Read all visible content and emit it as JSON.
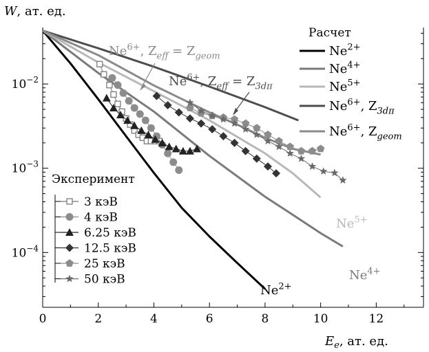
{
  "chart_data": {
    "type": "line",
    "title": "",
    "xlabel": "E_e, ат. ед.",
    "ylabel": "W, ат. ед.",
    "xlim": [
      0,
      13.7
    ],
    "ylim_log10": [
      -4.65,
      -1.33
    ],
    "yscale": "log",
    "x_ticks": [
      0,
      2,
      4,
      6,
      8,
      10,
      12
    ],
    "y_ticks": [
      {
        "value": 0.01,
        "label": "10^-2"
      },
      {
        "value": 0.001,
        "label": "10^-3"
      },
      {
        "value": 0.0001,
        "label": "10^-4"
      }
    ],
    "grid": false,
    "legend_calc_title": "Расчет",
    "legend_exp_title": "Эксперимент",
    "legend_calc_placement": "top-right",
    "legend_exp_placement": "bottom-left",
    "calc_series": [
      {
        "key": "ne2",
        "name": "Ne^2+",
        "color": "#000000",
        "points": [
          [
            0,
            0.043
          ],
          [
            1,
            0.0175
          ],
          [
            2,
            0.0066
          ],
          [
            3,
            0.0024
          ],
          [
            4,
            0.00088
          ],
          [
            5,
            0.00034
          ],
          [
            6,
            0.000155
          ],
          [
            7,
            7.5e-05
          ],
          [
            8,
            3.7e-05
          ]
        ]
      },
      {
        "key": "ne4",
        "name": "Ne^4+",
        "color": "#7a7a7a",
        "points": [
          [
            0,
            0.043
          ],
          [
            2,
            0.0135
          ],
          [
            4,
            0.0047
          ],
          [
            6,
            0.0014
          ],
          [
            8,
            0.00046
          ],
          [
            9,
            0.00028
          ],
          [
            10,
            0.00017
          ],
          [
            10.8,
            0.000118
          ]
        ]
      },
      {
        "key": "ne5",
        "name": "Ne^5+",
        "color": "#b8b8b8",
        "points": [
          [
            0,
            0.043
          ],
          [
            2,
            0.018
          ],
          [
            4,
            0.0082
          ],
          [
            6,
            0.0037
          ],
          [
            8,
            0.0015
          ],
          [
            9,
            0.00087
          ],
          [
            10,
            0.00045
          ]
        ]
      },
      {
        "key": "ne6_3dpi",
        "name": "Ne^6+, Z_3dπ",
        "color": "#4c4c4c",
        "points": [
          [
            0,
            0.043
          ],
          [
            2,
            0.0265
          ],
          [
            4,
            0.016
          ],
          [
            6,
            0.0093
          ],
          [
            8,
            0.0053
          ],
          [
            9.2,
            0.0037
          ]
        ]
      },
      {
        "key": "ne6_geom",
        "name": "Ne^6+, Z_geom",
        "color": "#8a8a8a",
        "points": [
          [
            0,
            0.043
          ],
          [
            2,
            0.022
          ],
          [
            4,
            0.0096
          ],
          [
            6,
            0.0046
          ],
          [
            7,
            0.0033
          ],
          [
            8,
            0.0023
          ],
          [
            9,
            0.0017
          ],
          [
            10,
            0.00145
          ]
        ]
      }
    ],
    "exp_series": [
      {
        "key": "e3",
        "name": "3 кэВ",
        "marker": "open-square",
        "color": "#7a7a7a",
        "points": [
          [
            2.05,
            0.0172
          ],
          [
            2.2,
            0.013
          ],
          [
            2.4,
            0.0097
          ],
          [
            2.55,
            0.0075
          ],
          [
            2.7,
            0.0058
          ],
          [
            2.85,
            0.0047
          ],
          [
            3.0,
            0.0039
          ],
          [
            3.15,
            0.0033
          ],
          [
            3.3,
            0.0028
          ],
          [
            3.45,
            0.0025
          ],
          [
            3.6,
            0.0023
          ],
          [
            3.75,
            0.0021
          ],
          [
            3.9,
            0.0021
          ],
          [
            4.05,
            0.0021
          ],
          [
            4.2,
            0.0021
          ]
        ]
      },
      {
        "key": "e4",
        "name": "4 кэВ",
        "marker": "circle",
        "color": "#8c8c8c",
        "points": [
          [
            2.5,
            0.0118
          ],
          [
            2.7,
            0.0097
          ],
          [
            2.9,
            0.0078
          ],
          [
            3.1,
            0.0063
          ],
          [
            3.3,
            0.0052
          ],
          [
            3.5,
            0.0044
          ],
          [
            3.7,
            0.0037
          ],
          [
            3.9,
            0.003
          ],
          [
            4.1,
            0.0024
          ],
          [
            4.3,
            0.0019
          ],
          [
            4.5,
            0.0015
          ],
          [
            4.7,
            0.00118
          ],
          [
            4.9,
            0.00095
          ]
        ]
      },
      {
        "key": "e625",
        "name": "6.25 кэВ",
        "marker": "triangle",
        "color": "#222222",
        "points": [
          [
            2.3,
            0.0068
          ],
          [
            2.55,
            0.0052
          ],
          [
            2.8,
            0.0043
          ],
          [
            3.05,
            0.0037
          ],
          [
            3.3,
            0.0032
          ],
          [
            3.55,
            0.0028
          ],
          [
            3.8,
            0.0025
          ],
          [
            4.05,
            0.0022
          ],
          [
            4.3,
            0.002
          ],
          [
            4.55,
            0.0018
          ],
          [
            4.8,
            0.0017
          ],
          [
            5.05,
            0.0016
          ],
          [
            5.3,
            0.0016
          ],
          [
            5.55,
            0.0017
          ]
        ]
      },
      {
        "key": "e125",
        "name": "12.5 кэВ",
        "marker": "diamond",
        "color": "#333333",
        "points": [
          [
            4.1,
            0.0072
          ],
          [
            4.5,
            0.0056
          ],
          [
            4.9,
            0.0046
          ],
          [
            5.3,
            0.0039
          ],
          [
            5.7,
            0.0034
          ],
          [
            6.1,
            0.0029
          ],
          [
            6.5,
            0.0024
          ],
          [
            6.9,
            0.002
          ],
          [
            7.3,
            0.0016
          ],
          [
            7.7,
            0.0013
          ],
          [
            8.1,
            0.00105
          ],
          [
            8.4,
            0.00087
          ]
        ]
      },
      {
        "key": "e25",
        "name": "25 кэВ",
        "marker": "pentagon",
        "color": "#8c8c8c",
        "points": [
          [
            5.3,
            0.0052
          ],
          [
            5.7,
            0.0045
          ],
          [
            6.1,
            0.0042
          ],
          [
            6.5,
            0.004
          ],
          [
            6.9,
            0.0038
          ],
          [
            7.3,
            0.0034
          ],
          [
            7.7,
            0.003
          ],
          [
            8.1,
            0.0025
          ],
          [
            8.5,
            0.0021
          ],
          [
            8.9,
            0.0018
          ],
          [
            9.3,
            0.0016
          ],
          [
            9.7,
            0.0016
          ],
          [
            10.0,
            0.0017
          ]
        ]
      },
      {
        "key": "e50",
        "name": "50 кэВ",
        "marker": "star",
        "color": "#6a6a6a",
        "points": [
          [
            5.3,
            0.006
          ],
          [
            5.7,
            0.0048
          ],
          [
            6.1,
            0.0042
          ],
          [
            6.5,
            0.0038
          ],
          [
            6.9,
            0.0034
          ],
          [
            7.3,
            0.0029
          ],
          [
            7.7,
            0.0025
          ],
          [
            8.1,
            0.0021
          ],
          [
            8.5,
            0.0018
          ],
          [
            8.9,
            0.0015
          ],
          [
            9.3,
            0.0013
          ],
          [
            9.7,
            0.00105
          ],
          [
            10.1,
            0.00092
          ],
          [
            10.5,
            0.00088
          ],
          [
            10.8,
            0.00072
          ]
        ]
      }
    ],
    "annotations": {
      "geom_top": "Ne^6+, Z_eff = Z_geom",
      "dpi_top": "Ne^6+, Z_eff = Z_3dπ",
      "ne5_label": "Ne^5+",
      "ne4_label": "Ne^4+",
      "ne2_label": "Ne^2+"
    }
  }
}
